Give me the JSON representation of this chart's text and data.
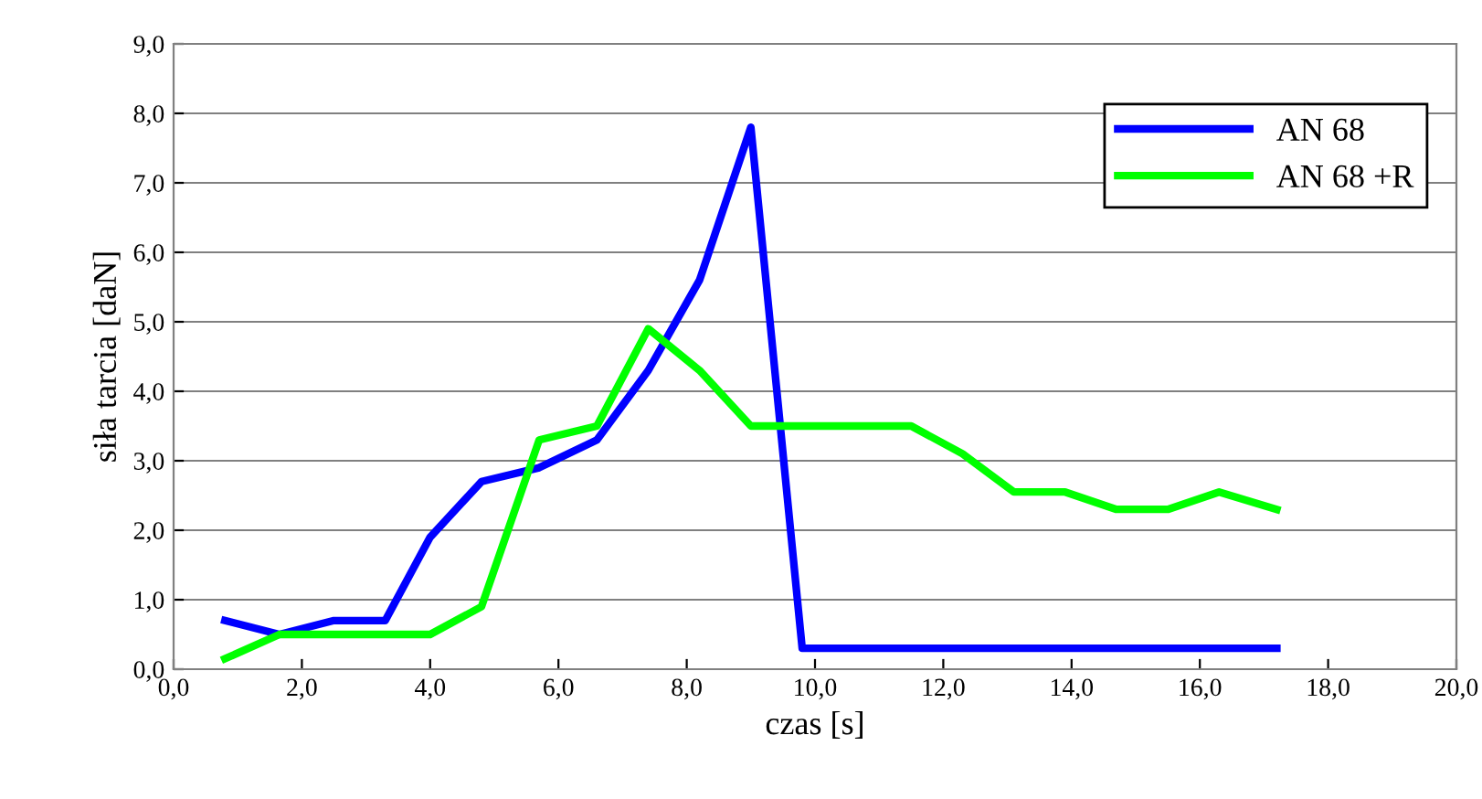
{
  "chart_data": {
    "type": "line",
    "xlabel": "czas [s]",
    "ylabel": "siła tarcia [daN]",
    "xlim": [
      0,
      20
    ],
    "ylim": [
      0,
      9
    ],
    "xticks": [
      {
        "value": 0,
        "label": "0,0"
      },
      {
        "value": 2,
        "label": "2,0"
      },
      {
        "value": 4,
        "label": "4,0"
      },
      {
        "value": 6,
        "label": "6,0"
      },
      {
        "value": 8,
        "label": "8,0"
      },
      {
        "value": 10,
        "label": "10,0"
      },
      {
        "value": 12,
        "label": "12,0"
      },
      {
        "value": 14,
        "label": "14,0"
      },
      {
        "value": 16,
        "label": "16,0"
      },
      {
        "value": 18,
        "label": "18,0"
      },
      {
        "value": 20,
        "label": "20,0"
      }
    ],
    "yticks": [
      {
        "value": 0,
        "label": "0,0"
      },
      {
        "value": 1,
        "label": "1,0"
      },
      {
        "value": 2,
        "label": "2,0"
      },
      {
        "value": 3,
        "label": "3,0"
      },
      {
        "value": 4,
        "label": "4,0"
      },
      {
        "value": 5,
        "label": "5,0"
      },
      {
        "value": 6,
        "label": "6,0"
      },
      {
        "value": 7,
        "label": "7,0"
      },
      {
        "value": 8,
        "label": "8,0"
      },
      {
        "value": 9,
        "label": "9,0"
      }
    ],
    "x": [
      0.8,
      1.65,
      2.5,
      3.3,
      4.0,
      4.8,
      5.7,
      6.6,
      7.4,
      8.2,
      9.0,
      9.8,
      10.6,
      11.5,
      12.3,
      13.1,
      13.9,
      14.7,
      15.5,
      16.3,
      17.2
    ],
    "series": [
      {
        "name": "AN 68",
        "color": "#0000ff",
        "values": [
          0.7,
          0.5,
          0.7,
          0.7,
          1.9,
          2.7,
          2.9,
          3.3,
          4.3,
          5.6,
          7.8,
          0.3,
          0.3,
          0.3,
          0.3,
          0.3,
          0.3,
          0.3,
          0.3,
          0.3,
          0.3
        ]
      },
      {
        "name": "AN 68 +R",
        "color": "#00ff00",
        "values": [
          0.15,
          0.5,
          0.5,
          0.5,
          0.5,
          0.9,
          3.3,
          3.5,
          4.9,
          4.3,
          3.5,
          3.5,
          3.5,
          3.5,
          3.1,
          2.55,
          2.55,
          2.3,
          2.3,
          2.55,
          2.3
        ]
      }
    ],
    "grid": "y",
    "legend": "top right",
    "marker": "none",
    "line_style": "solid"
  }
}
